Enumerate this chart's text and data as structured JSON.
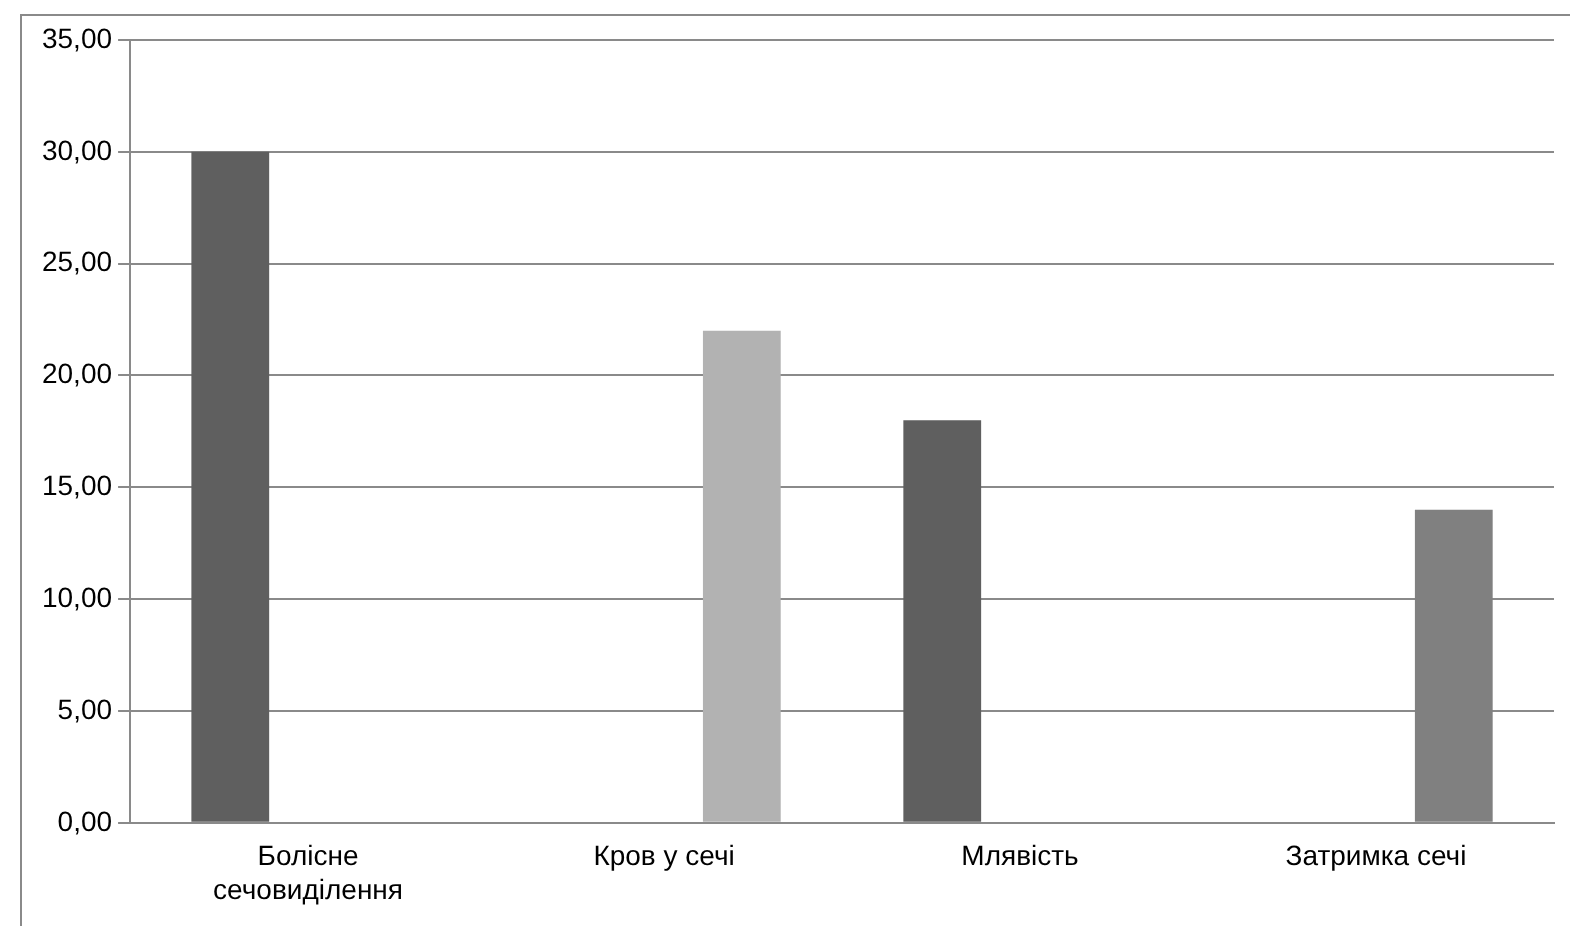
{
  "chart_data": {
    "type": "bar",
    "categories": [
      "Болісне сечовиділення",
      "Кров у сечі",
      "Млявість",
      "Затримка сечі"
    ],
    "series": [
      {
        "color": "#5f5f5f",
        "values": [
          30,
          null,
          18,
          null
        ]
      },
      {
        "colors": [
          "#b2b2b2",
          "#b2b2b2",
          "#b2b2b2",
          "#808080"
        ],
        "values": [
          null,
          22,
          null,
          14
        ]
      }
    ],
    "ylim": [
      0,
      35
    ],
    "yticks": [
      {
        "value": 0,
        "label": "0,00"
      },
      {
        "value": 5,
        "label": "5,00"
      },
      {
        "value": 10,
        "label": "10,00"
      },
      {
        "value": 15,
        "label": "15,00"
      },
      {
        "value": 20,
        "label": "20,00"
      },
      {
        "value": 25,
        "label": "25,00"
      },
      {
        "value": 30,
        "label": "30,00"
      },
      {
        "value": 35,
        "label": "35,00"
      }
    ],
    "grid": "y",
    "legend": false
  }
}
